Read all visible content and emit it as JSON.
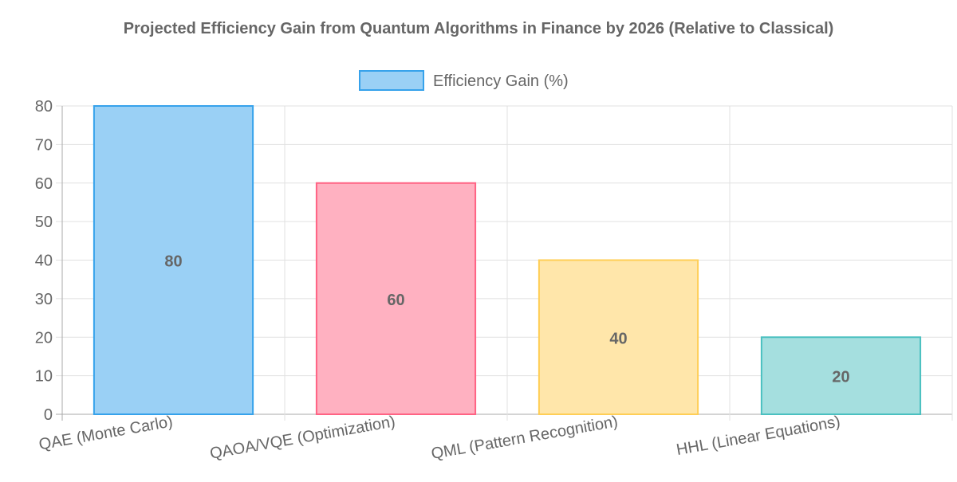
{
  "chart_data": {
    "type": "bar",
    "title": "Projected Efficiency Gain from Quantum Algorithms in Finance by 2026 (Relative to Classical)",
    "categories": [
      "QAE (Monte Carlo)",
      "QAOA/VQE (Optimization)",
      "QML (Pattern Recognition)",
      "HHL (Linear Equations)"
    ],
    "series": [
      {
        "name": "Efficiency Gain (%)",
        "values": [
          80,
          60,
          40,
          20
        ]
      }
    ],
    "data_labels": [
      "80",
      "60",
      "40",
      "20"
    ],
    "ylim": [
      0,
      80
    ],
    "yticks": [
      "0",
      "10",
      "20",
      "30",
      "40",
      "50",
      "60",
      "70",
      "80"
    ],
    "grid": true,
    "legend": "top",
    "colors": {
      "fill": [
        "#9ad0f5",
        "#ffb1c1",
        "#ffe6aa",
        "#a5dfdf"
      ],
      "border": [
        "#36a2eb",
        "#ff6384",
        "#ffce56",
        "#4bc0c0"
      ]
    }
  }
}
